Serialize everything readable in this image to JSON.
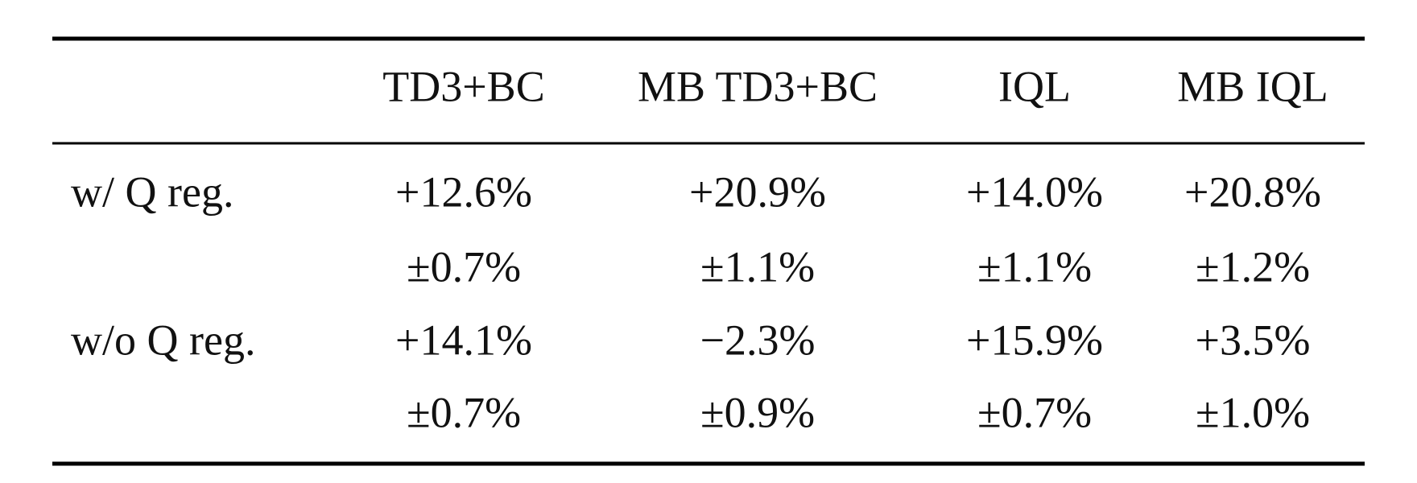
{
  "table": {
    "columns": [
      "TD3+BC",
      "MB TD3+BC",
      "IQL",
      "MB IQL"
    ],
    "rows": [
      {
        "label": "w/ Q reg.",
        "cells": [
          {
            "mean": "+12.6%",
            "std": "±0.7%"
          },
          {
            "mean": "+20.9%",
            "std": "±1.1%"
          },
          {
            "mean": "+14.0%",
            "std": "±1.1%"
          },
          {
            "mean": "+20.8%",
            "std": "±1.2%"
          }
        ]
      },
      {
        "label": "w/o Q reg.",
        "cells": [
          {
            "mean": "+14.1%",
            "std": "±0.7%"
          },
          {
            "mean": "−2.3%",
            "std": "±0.9%"
          },
          {
            "mean": "+15.9%",
            "std": "±0.7%"
          },
          {
            "mean": "+3.5%",
            "std": "±1.0%"
          }
        ]
      }
    ]
  }
}
